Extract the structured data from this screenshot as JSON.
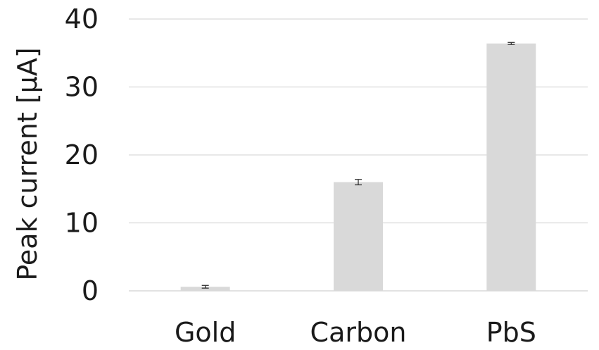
{
  "chart_data": {
    "type": "bar",
    "categories": [
      "Gold",
      "Carbon",
      "PbS"
    ],
    "values": [
      0.6,
      16.0,
      36.4
    ],
    "errors": [
      0.2,
      0.4,
      0.15
    ],
    "title": "",
    "xlabel": "",
    "ylabel": "Peak current [µA]",
    "ylim": [
      0,
      40
    ],
    "yticks": [
      0,
      10,
      20,
      30,
      40
    ],
    "ytick_labels": [
      "0",
      "10",
      "20",
      "30",
      "40"
    ],
    "grid": true,
    "legend": "none",
    "colors": {
      "bar": "#d9d9d9",
      "grid": "#d9d9d9",
      "error_bar": "#333333",
      "text": "#1a1a1a"
    }
  }
}
